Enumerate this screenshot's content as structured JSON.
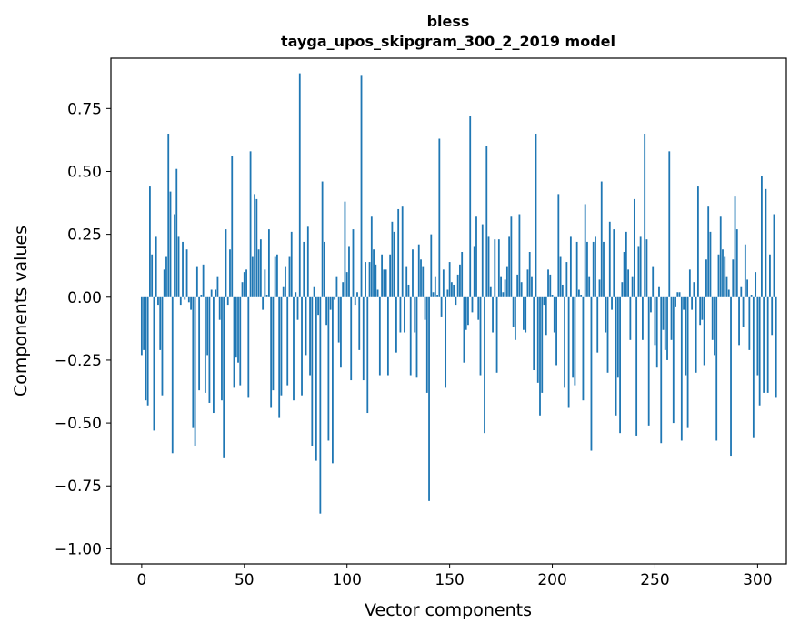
{
  "chart_data": {
    "type": "bar",
    "title": "bless",
    "subtitle": "tayga_upos_skipgram_300_2_2019 model",
    "xlabel": "Vector components",
    "ylabel": "Components values",
    "xlim": [
      -15,
      314
    ],
    "ylim": [
      -1.06,
      0.95
    ],
    "xticks": [
      0,
      50,
      100,
      150,
      200,
      250,
      300
    ],
    "xtick_labels": [
      "0",
      "50",
      "100",
      "150",
      "200",
      "250",
      "300"
    ],
    "yticks": [
      -1.0,
      -0.75,
      -0.5,
      -0.25,
      0.0,
      0.25,
      0.5,
      0.75
    ],
    "ytick_labels": [
      "−1.00",
      "−0.75",
      "−0.50",
      "−0.25",
      "0.00",
      "0.25",
      "0.50",
      "0.75"
    ],
    "grid": false,
    "bar_color": "#1f77b4",
    "values": [
      -0.23,
      -0.21,
      -0.41,
      -0.43,
      0.44,
      0.17,
      -0.53,
      0.24,
      -0.03,
      -0.21,
      -0.39,
      0.11,
      0.16,
      0.65,
      0.42,
      -0.62,
      0.33,
      0.51,
      0.24,
      -0.03,
      0.22,
      -0.01,
      0.19,
      -0.02,
      -0.05,
      -0.52,
      -0.59,
      0.12,
      -0.37,
      0.01,
      0.13,
      -0.38,
      -0.23,
      -0.42,
      0.03,
      -0.46,
      0.03,
      0.08,
      -0.09,
      -0.41,
      -0.64,
      0.27,
      -0.03,
      0.19,
      0.56,
      -0.36,
      -0.24,
      -0.26,
      -0.35,
      0.06,
      0.1,
      0.11,
      -0.4,
      0.58,
      0.16,
      0.41,
      0.39,
      0.19,
      0.23,
      -0.05,
      0.11,
      0.01,
      0.27,
      -0.44,
      -0.37,
      0.16,
      0.17,
      -0.48,
      -0.39,
      0.04,
      0.12,
      -0.35,
      0.16,
      0.26,
      -0.41,
      0.02,
      -0.09,
      0.89,
      -0.39,
      0.22,
      -0.23,
      0.28,
      -0.31,
      -0.59,
      0.04,
      -0.65,
      -0.07,
      -0.86,
      0.46,
      0.22,
      -0.11,
      -0.57,
      -0.05,
      -0.66,
      -0.01,
      0.08,
      -0.18,
      -0.28,
      0.06,
      0.38,
      0.1,
      0.2,
      -0.33,
      0.27,
      -0.03,
      0.02,
      -0.21,
      0.88,
      -0.33,
      0.14,
      -0.46,
      0.14,
      0.32,
      0.19,
      0.13,
      0.03,
      -0.31,
      0.17,
      0.11,
      0.11,
      -0.31,
      0.17,
      0.3,
      0.26,
      -0.22,
      0.35,
      -0.14,
      0.36,
      -0.14,
      0.12,
      0.05,
      -0.31,
      0.19,
      -0.14,
      -0.32,
      0.21,
      0.15,
      0.12,
      -0.09,
      -0.38,
      -0.81,
      0.25,
      0.02,
      0.08,
      0.01,
      0.63,
      -0.08,
      0.11,
      -0.36,
      0.03,
      0.14,
      0.06,
      0.05,
      -0.03,
      0.09,
      0.13,
      0.18,
      -0.26,
      -0.13,
      -0.11,
      0.72,
      -0.06,
      0.2,
      0.32,
      -0.09,
      -0.31,
      0.29,
      -0.54,
      0.6,
      0.24,
      0.04,
      -0.14,
      0.23,
      -0.3,
      0.23,
      0.08,
      0.02,
      0.07,
      0.12,
      0.24,
      0.32,
      -0.12,
      -0.17,
      0.09,
      0.33,
      0.06,
      -0.13,
      -0.14,
      0.11,
      0.18,
      0.08,
      -0.29,
      0.65,
      -0.34,
      -0.47,
      -0.38,
      -0.03,
      -0.15,
      0.11,
      0.09,
      0.01,
      -0.14,
      -0.27,
      0.41,
      0.16,
      0.05,
      -0.36,
      0.14,
      -0.44,
      0.24,
      -0.32,
      -0.35,
      0.22,
      0.03,
      0.01,
      -0.41,
      0.37,
      0.22,
      0.08,
      -0.61,
      0.22,
      0.24,
      -0.22,
      0.07,
      0.46,
      0.22,
      -0.14,
      -0.3,
      0.3,
      -0.05,
      0.27,
      -0.47,
      -0.32,
      -0.54,
      0.06,
      0.18,
      0.26,
      0.11,
      -0.17,
      0.08,
      0.39,
      -0.55,
      0.2,
      0.24,
      -0.17,
      0.65,
      0.23,
      -0.51,
      -0.06,
      0.12,
      -0.19,
      -0.28,
      0.04,
      -0.58,
      -0.13,
      -0.21,
      -0.25,
      0.58,
      -0.17,
      -0.5,
      -0.04,
      0.02,
      0.02,
      -0.57,
      -0.05,
      -0.31,
      -0.52,
      0.11,
      -0.05,
      0.06,
      -0.3,
      0.44,
      -0.11,
      -0.09,
      -0.27,
      0.15,
      0.36,
      0.26,
      -0.17,
      -0.23,
      -0.57,
      0.17,
      0.32,
      0.19,
      0.16,
      0.08,
      0.03,
      -0.63,
      0.15,
      0.4,
      0.27,
      -0.19,
      0.04,
      -0.12,
      0.21,
      0.07,
      -0.21,
      0.01,
      -0.56,
      0.1,
      -0.31,
      -0.43,
      0.48,
      -0.38,
      0.43,
      -0.38,
      0.17,
      -0.15,
      0.33,
      -0.4
    ]
  }
}
